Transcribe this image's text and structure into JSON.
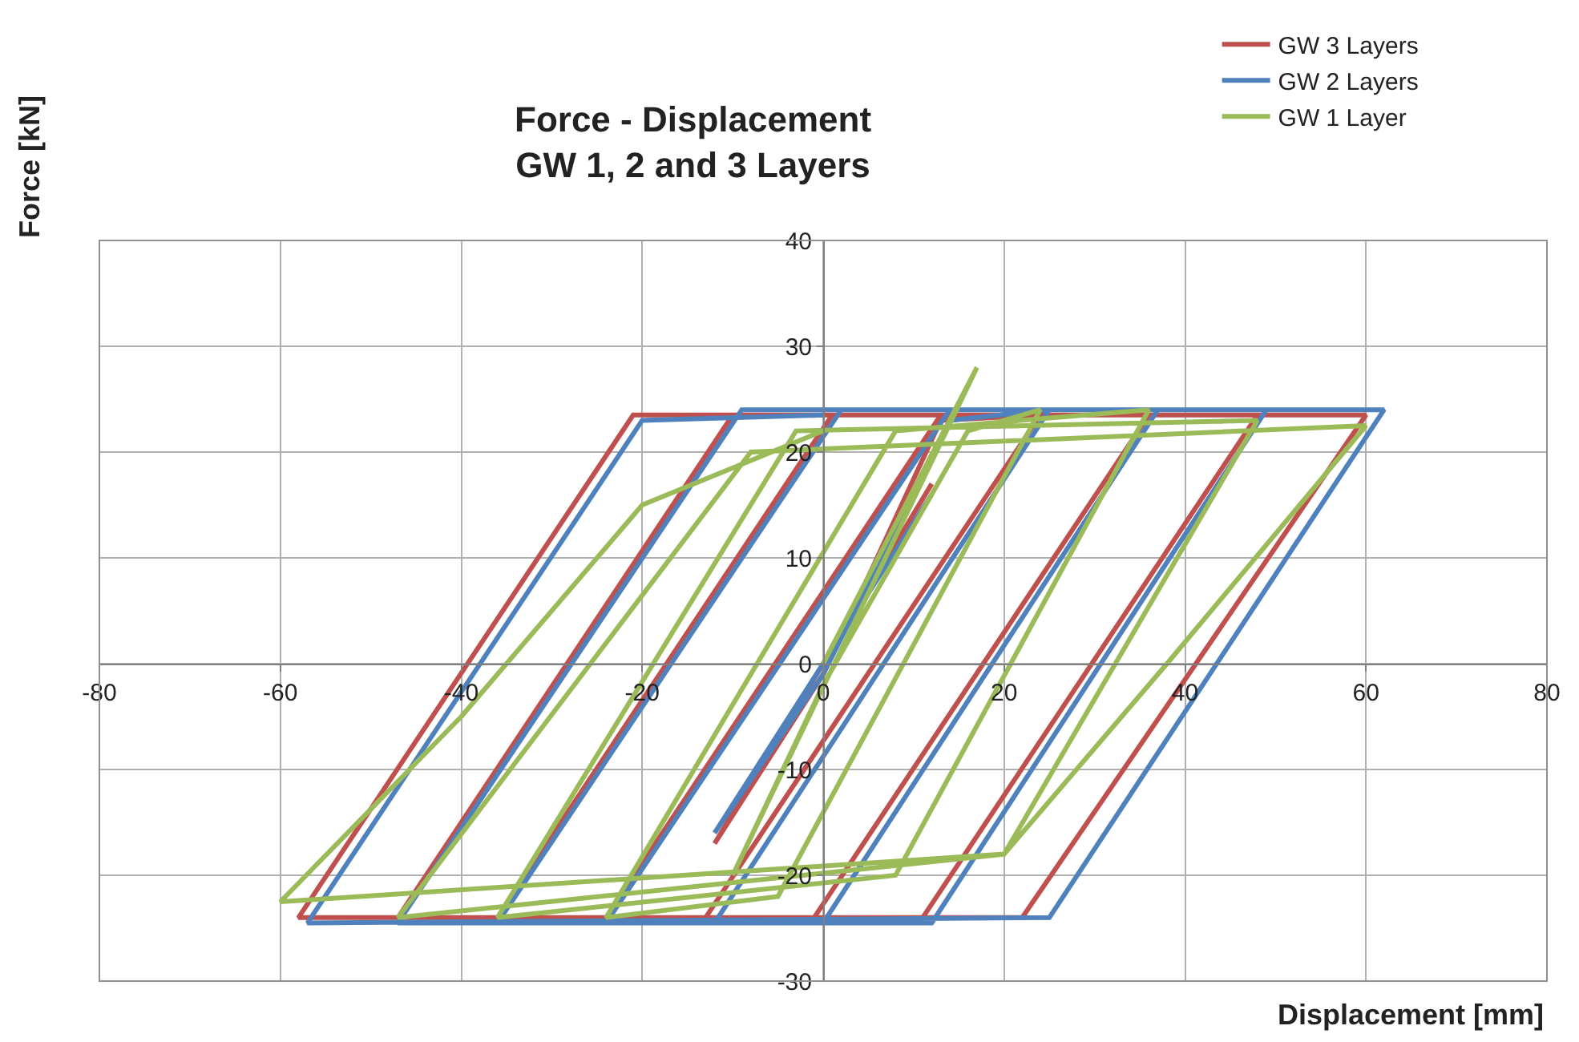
{
  "chart_data": {
    "type": "line",
    "title": "Force - Displacement\nGW 1, 2 and 3 Layers",
    "xlabel": "Displacement [mm]",
    "ylabel": "Force [kN]",
    "xlim": [
      -80,
      80
    ],
    "xticks": [
      -80,
      -60,
      -40,
      -20,
      0,
      20,
      40,
      60,
      80
    ],
    "ylim": [
      -30,
      40
    ],
    "yticks": [
      -30,
      -20,
      -10,
      0,
      10,
      20,
      30,
      40
    ],
    "grid": true,
    "legend": "top right",
    "marker": "none",
    "line_style": "solid",
    "series": [
      {
        "name": "GW 3 Layers",
        "color": "#c0504d",
        "x": [
          0,
          12,
          -12,
          0,
          13,
          24,
          -13,
          -24,
          13,
          36,
          -1,
          -36,
          1,
          48,
          11,
          -47,
          -10,
          60,
          22,
          -58,
          -21,
          0
        ],
        "values": [
          0,
          17,
          -17,
          -1,
          23,
          23.5,
          -24,
          -24,
          23.5,
          23.5,
          -24,
          -24,
          23.5,
          23.5,
          -24,
          -24,
          23.5,
          23.5,
          -24,
          -24,
          23.5,
          23.5
        ]
      },
      {
        "name": "GW 2 Layers",
        "color": "#4f81bd",
        "x": [
          0,
          12,
          -12,
          0,
          14,
          25,
          -12,
          -24,
          14,
          37,
          0,
          -36,
          2,
          49,
          12,
          -47,
          -9,
          62,
          25,
          -57,
          -20,
          0
        ],
        "values": [
          0,
          16,
          -16,
          -1,
          23,
          24,
          -24.5,
          -24.5,
          24,
          24,
          -24.5,
          -24.5,
          24,
          24,
          -24.5,
          -24.5,
          24,
          24,
          -24,
          -24.5,
          23,
          23.5
        ]
      },
      {
        "name": "GW 1 Layer",
        "color": "#9bbb59",
        "x": [
          0,
          17,
          -10,
          0,
          16,
          24,
          -5,
          -24,
          8,
          36,
          8,
          -36,
          -3,
          48,
          20,
          -47,
          -8,
          60,
          38,
          20,
          -60,
          -40,
          -20,
          0
        ],
        "values": [
          0,
          28,
          -20,
          -2,
          22,
          24,
          -22,
          -24,
          22,
          24,
          -20,
          -24,
          22,
          23,
          -18,
          -24,
          20,
          22.5,
          0,
          -18,
          -22.5,
          -5,
          15,
          22
        ]
      }
    ]
  }
}
